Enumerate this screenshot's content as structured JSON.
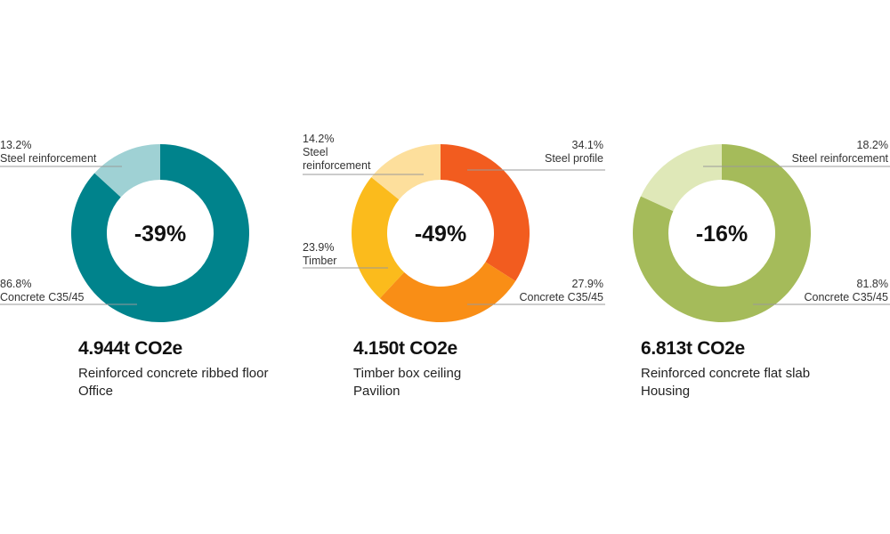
{
  "chart_data": [
    {
      "type": "pie",
      "variant": "donut",
      "center_label": "-39%",
      "total": "4.944t CO2e",
      "subtitle": "Reinforced concrete ribbed floor",
      "category": "Office",
      "slices": [
        {
          "pct_label": "86.8%",
          "name": "Concrete C35/45",
          "value": 86.8,
          "color": "#00838c"
        },
        {
          "pct_label": "13.2%",
          "name": "Steel reinforcement",
          "value": 13.2,
          "color": "#9fd1d4"
        }
      ]
    },
    {
      "type": "pie",
      "variant": "donut",
      "center_label": "-49%",
      "total": "4.150t CO2e",
      "subtitle": "Timber box ceiling",
      "category": "Pavilion",
      "slices": [
        {
          "pct_label": "34.1%",
          "name": "Steel profile",
          "value": 34.1,
          "color": "#f25c1f"
        },
        {
          "pct_label": "27.9%",
          "name": "Concrete C35/45",
          "value": 27.9,
          "color": "#f98e16"
        },
        {
          "pct_label": "23.9%",
          "name": "Timber",
          "value": 23.9,
          "color": "#fbbb1c"
        },
        {
          "pct_label": "14.2%",
          "name_lines": [
            "Steel",
            "reinforcement"
          ],
          "name": "Steel reinforcement",
          "value": 14.2,
          "color": "#fddf9c"
        }
      ]
    },
    {
      "type": "pie",
      "variant": "donut",
      "center_label": "-16%",
      "total": "6.813t CO2e",
      "subtitle": "Reinforced concrete flat slab",
      "category": "Housing",
      "slices": [
        {
          "pct_label": "81.8%",
          "name": "Concrete C35/45",
          "value": 81.8,
          "color": "#a5bb5a"
        },
        {
          "pct_label": "18.2%",
          "name": "Steel reinforcement",
          "value": 18.2,
          "color": "#dfe8b8"
        }
      ]
    }
  ]
}
